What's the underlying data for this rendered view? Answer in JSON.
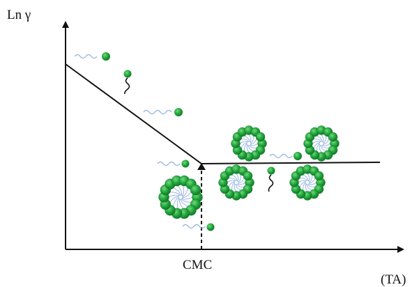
{
  "labels": {
    "y_axis": "Ln γ",
    "x_axis": "(TA)",
    "cmc": "CMC"
  },
  "colors": {
    "axis": "#111111",
    "surfactant_head": "#1fa23a",
    "surfactant_head_highlight": "#6fd97a",
    "surfactant_tail": "#8fb0e0",
    "free_tail": "#111111"
  },
  "elements": {
    "free_monomers": 6,
    "micelles": 5
  }
}
